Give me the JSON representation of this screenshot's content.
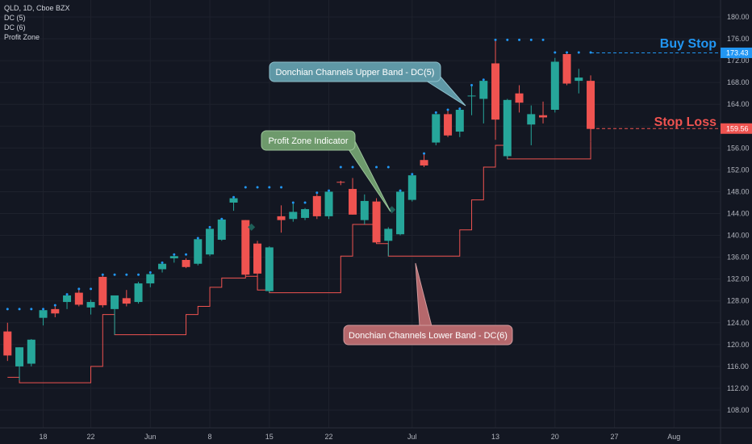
{
  "header": {
    "symbol_line": "QLD, 1D, Cboe BZX",
    "indicators": [
      "DC (5)",
      "DC (6)",
      "Profit Zone"
    ]
  },
  "colors": {
    "background": "#131722",
    "grid": "#1e222d",
    "up": "#26a69a",
    "down": "#ef5350",
    "upper_band": "#2196f3",
    "lower_band": "#ef5350",
    "buy_stop": "#2196f3",
    "stop_loss": "#ef5350",
    "profit_marker": "#1f5f58"
  },
  "annotations": {
    "buy_stop_label": "Buy Stop",
    "stop_loss_label": "Stop Loss",
    "upper_band_callout": "Donchian Channels Upper Band - DC(5)",
    "lower_band_callout": "Donchian Channels Lower Band - DC(6)",
    "profit_zone_callout": "Profit Zone Indicator"
  },
  "chart_data": {
    "type": "candlestick",
    "y_axis": {
      "min": 107,
      "max": 182,
      "ticks": [
        "108.00",
        "112.00",
        "116.00",
        "120.00",
        "124.00",
        "128.00",
        "132.00",
        "136.00",
        "140.00",
        "144.00",
        "148.00",
        "152.00",
        "156.00",
        "160.00",
        "164.00",
        "168.00",
        "172.00",
        "176.00",
        "180.00"
      ]
    },
    "x_axis": {
      "labels": [
        {
          "text": "18",
          "bar": 3
        },
        {
          "text": "22",
          "bar": 7
        },
        {
          "text": "Jun",
          "bar": 12
        },
        {
          "text": "8",
          "bar": 17
        },
        {
          "text": "15",
          "bar": 22
        },
        {
          "text": "22",
          "bar": 27
        },
        {
          "text": "Jul",
          "bar": 34
        },
        {
          "text": "13",
          "bar": 41
        },
        {
          "text": "20",
          "bar": 46
        },
        {
          "text": "27",
          "bar": 51
        },
        {
          "text": "Aug",
          "bar": 56
        }
      ]
    },
    "candles": [
      {
        "o": 122.4,
        "h": 124.0,
        "l": 117.0,
        "c": 118.0
      },
      {
        "o": 116.0,
        "h": 119.5,
        "l": 113.5,
        "c": 119.5
      },
      {
        "o": 116.5,
        "h": 121.0,
        "l": 116.0,
        "c": 120.9
      },
      {
        "o": 124.9,
        "h": 126.5,
        "l": 123.5,
        "c": 126.3
      },
      {
        "o": 126.5,
        "h": 127.2,
        "l": 125.0,
        "c": 125.7
      },
      {
        "o": 127.8,
        "h": 129.2,
        "l": 126.5,
        "c": 129.0
      },
      {
        "o": 129.5,
        "h": 130.2,
        "l": 127.0,
        "c": 127.3
      },
      {
        "o": 126.8,
        "h": 128.2,
        "l": 125.5,
        "c": 127.8
      },
      {
        "o": 132.4,
        "h": 132.8,
        "l": 126.8,
        "c": 127.2
      },
      {
        "o": 126.5,
        "h": 129.0,
        "l": 121.8,
        "c": 129.0
      },
      {
        "o": 128.5,
        "h": 130.0,
        "l": 127.0,
        "c": 127.5
      },
      {
        "o": 127.8,
        "h": 131.5,
        "l": 127.5,
        "c": 131.2
      },
      {
        "o": 131.2,
        "h": 133.2,
        "l": 130.5,
        "c": 132.9
      },
      {
        "o": 133.8,
        "h": 135.0,
        "l": 133.2,
        "c": 134.8
      },
      {
        "o": 135.8,
        "h": 136.5,
        "l": 135.0,
        "c": 136.2
      },
      {
        "o": 135.5,
        "h": 135.8,
        "l": 134.0,
        "c": 134.2
      },
      {
        "o": 134.8,
        "h": 139.5,
        "l": 134.5,
        "c": 139.3
      },
      {
        "o": 136.5,
        "h": 141.5,
        "l": 136.2,
        "c": 141.2
      },
      {
        "o": 139.2,
        "h": 143.0,
        "l": 139.0,
        "c": 142.9
      },
      {
        "o": 146.0,
        "h": 147.0,
        "l": 144.5,
        "c": 146.8
      },
      {
        "o": 142.8,
        "h": 142.8,
        "l": 132.5,
        "c": 132.8
      },
      {
        "o": 138.5,
        "h": 139.0,
        "l": 130.0,
        "c": 133.0
      },
      {
        "o": 129.8,
        "h": 138.0,
        "l": 129.5,
        "c": 137.8
      },
      {
        "o": 143.5,
        "h": 145.5,
        "l": 140.5,
        "c": 142.8
      },
      {
        "o": 143.0,
        "h": 146.0,
        "l": 142.5,
        "c": 144.3
      },
      {
        "o": 143.2,
        "h": 145.0,
        "l": 142.8,
        "c": 144.8
      },
      {
        "o": 147.2,
        "h": 147.8,
        "l": 143.0,
        "c": 143.5
      },
      {
        "o": 143.5,
        "h": 148.2,
        "l": 143.0,
        "c": 148.0
      },
      {
        "o": 149.8,
        "h": 150.0,
        "l": 149.2,
        "c": 149.7
      },
      {
        "o": 148.5,
        "h": 150.5,
        "l": 143.8,
        "c": 143.8
      },
      {
        "o": 142.8,
        "h": 147.5,
        "l": 142.0,
        "c": 146.3
      },
      {
        "o": 146.2,
        "h": 146.8,
        "l": 138.5,
        "c": 138.7
      },
      {
        "o": 139.0,
        "h": 141.5,
        "l": 136.2,
        "c": 141.2
      },
      {
        "o": 140.2,
        "h": 148.2,
        "l": 140.0,
        "c": 148.0
      },
      {
        "o": 146.5,
        "h": 151.2,
        "l": 146.2,
        "c": 151.0
      },
      {
        "o": 153.8,
        "h": 155.0,
        "l": 152.5,
        "c": 152.8
      },
      {
        "o": 157.0,
        "h": 162.5,
        "l": 156.5,
        "c": 162.2
      },
      {
        "o": 162.2,
        "h": 163.0,
        "l": 158.0,
        "c": 158.3
      },
      {
        "o": 159.0,
        "h": 163.2,
        "l": 158.0,
        "c": 163.0
      },
      {
        "o": 165.5,
        "h": 167.5,
        "l": 162.0,
        "c": 165.6
      },
      {
        "o": 165.0,
        "h": 168.5,
        "l": 160.5,
        "c": 168.3
      },
      {
        "o": 171.5,
        "h": 175.8,
        "l": 157.5,
        "c": 161.2
      },
      {
        "o": 154.5,
        "h": 165.0,
        "l": 154.0,
        "c": 164.8
      },
      {
        "o": 166.0,
        "h": 167.5,
        "l": 162.5,
        "c": 164.3
      },
      {
        "o": 160.3,
        "h": 163.8,
        "l": 156.5,
        "c": 162.2
      },
      {
        "o": 162.0,
        "h": 164.5,
        "l": 160.5,
        "c": 161.6
      },
      {
        "o": 163.0,
        "h": 172.5,
        "l": 162.5,
        "c": 171.8
      },
      {
        "o": 173.2,
        "h": 173.5,
        "l": 167.5,
        "c": 167.8
      },
      {
        "o": 168.3,
        "h": 170.5,
        "l": 166.0,
        "c": 168.9
      },
      {
        "o": 168.3,
        "h": 169.3,
        "l": 157.2,
        "c": 159.5
      }
    ],
    "upper_band_dots": [
      {
        "bar": 0,
        "v": 126.5
      },
      {
        "bar": 1,
        "v": 126.5
      },
      {
        "bar": 2,
        "v": 126.5
      },
      {
        "bar": 3,
        "v": 126.5
      },
      {
        "bar": 4,
        "v": 127.2
      },
      {
        "bar": 5,
        "v": 129.2
      },
      {
        "bar": 6,
        "v": 130.2
      },
      {
        "bar": 7,
        "v": 130.2
      },
      {
        "bar": 8,
        "v": 132.8
      },
      {
        "bar": 9,
        "v": 132.8
      },
      {
        "bar": 10,
        "v": 132.8
      },
      {
        "bar": 11,
        "v": 132.8
      },
      {
        "bar": 12,
        "v": 133.2
      },
      {
        "bar": 13,
        "v": 135.0
      },
      {
        "bar": 14,
        "v": 136.5
      },
      {
        "bar": 15,
        "v": 136.5
      },
      {
        "bar": 16,
        "v": 139.5
      },
      {
        "bar": 17,
        "v": 141.5
      },
      {
        "bar": 18,
        "v": 143.0
      },
      {
        "bar": 19,
        "v": 147.0
      },
      {
        "bar": 20,
        "v": 148.8
      },
      {
        "bar": 21,
        "v": 148.8
      },
      {
        "bar": 22,
        "v": 148.8
      },
      {
        "bar": 23,
        "v": 148.8
      },
      {
        "bar": 24,
        "v": 146.0
      },
      {
        "bar": 25,
        "v": 146.0
      },
      {
        "bar": 26,
        "v": 147.8
      },
      {
        "bar": 27,
        "v": 148.2
      },
      {
        "bar": 28,
        "v": 152.5
      },
      {
        "bar": 29,
        "v": 152.5
      },
      {
        "bar": 30,
        "v": 152.5
      },
      {
        "bar": 31,
        "v": 152.5
      },
      {
        "bar": 32,
        "v": 152.5
      },
      {
        "bar": 33,
        "v": 148.2
      },
      {
        "bar": 34,
        "v": 151.2
      },
      {
        "bar": 35,
        "v": 155.0
      },
      {
        "bar": 36,
        "v": 162.5
      },
      {
        "bar": 37,
        "v": 163.0
      },
      {
        "bar": 38,
        "v": 163.2
      },
      {
        "bar": 39,
        "v": 167.5
      },
      {
        "bar": 40,
        "v": 168.5
      },
      {
        "bar": 41,
        "v": 175.8
      },
      {
        "bar": 42,
        "v": 175.8
      },
      {
        "bar": 43,
        "v": 175.8
      },
      {
        "bar": 44,
        "v": 175.8
      },
      {
        "bar": 45,
        "v": 175.8
      },
      {
        "bar": 46,
        "v": 173.5
      },
      {
        "bar": 47,
        "v": 173.5
      },
      {
        "bar": 48,
        "v": 173.5
      },
      {
        "bar": 49,
        "v": 173.5
      }
    ],
    "lower_band_steps": [
      {
        "bar": 0,
        "v": 114.0
      },
      {
        "bar": 1,
        "v": 113.0
      },
      {
        "bar": 7,
        "v": 116.0
      },
      {
        "bar": 8,
        "v": 125.5
      },
      {
        "bar": 9,
        "v": 121.8
      },
      {
        "bar": 15,
        "v": 125.5
      },
      {
        "bar": 16,
        "v": 127.0
      },
      {
        "bar": 17,
        "v": 130.5
      },
      {
        "bar": 18,
        "v": 132.2
      },
      {
        "bar": 20,
        "v": 132.5
      },
      {
        "bar": 21,
        "v": 130.0
      },
      {
        "bar": 22,
        "v": 129.5
      },
      {
        "bar": 28,
        "v": 136.2
      },
      {
        "bar": 29,
        "v": 142.0
      },
      {
        "bar": 31,
        "v": 138.5
      },
      {
        "bar": 32,
        "v": 136.2
      },
      {
        "bar": 38,
        "v": 141.0
      },
      {
        "bar": 39,
        "v": 146.5
      },
      {
        "bar": 40,
        "v": 152.5
      },
      {
        "bar": 41,
        "v": 156.5
      },
      {
        "bar": 42,
        "v": 154.0
      },
      {
        "bar": 49,
        "v": 157.2
      }
    ],
    "profit_zone_markers": [
      {
        "bar": 20.5,
        "v": 141.5
      },
      {
        "bar": 32.3,
        "v": 144.7
      }
    ],
    "levels": {
      "buy_stop": {
        "value": 173.43,
        "label": "173.43"
      },
      "stop_loss": {
        "value": 159.56,
        "label": "159.56"
      }
    }
  }
}
